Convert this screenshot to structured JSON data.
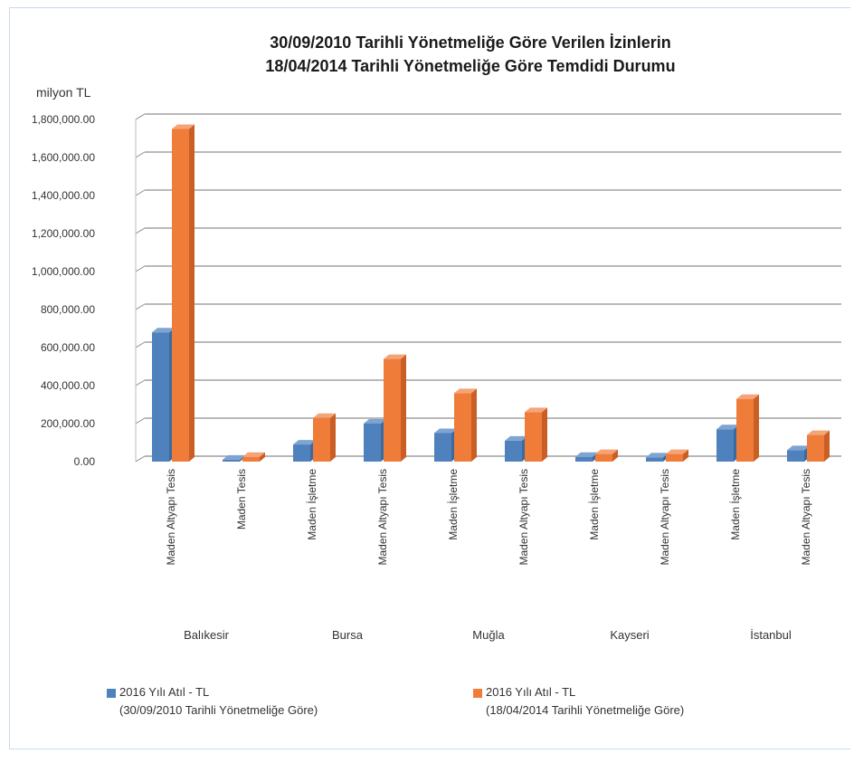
{
  "chart_data": {
    "type": "bar",
    "title": "30/09/2010 Tarihli Yönetmeliğe Göre Verilen İzinlerin 18/04/2014 Tarihli Yönetmeliğe Göre Temdidi Durumu",
    "title_lines": [
      "30/09/2010 Tarihli Yönetmeliğe Göre Verilen İzinlerin",
      "18/04/2014 Tarihli Yönetmeliğe Göre Temdidi Durumu"
    ],
    "ylabel": "milyon TL",
    "ylim": [
      0,
      1800000
    ],
    "yticks": [
      "0.00",
      "200,000.00",
      "400,000.00",
      "600,000.00",
      "800,000.00",
      "1,000,000.00",
      "1,200,000.00",
      "1,400,000.00",
      "1,600,000.00",
      "1,800,000.00"
    ],
    "grid": true,
    "legend_position": "bottom",
    "categories": [
      "Maden Altyapı Tesis",
      "Maden Tesis",
      "Maden İşletme",
      "Maden Altyapı Tesis",
      "Maden İşletme",
      "Maden Altyapı Tesis",
      "Maden İşletme",
      "Maden Altyapı Tesis",
      "Maden İşletme",
      "Maden Altyapı Tesis"
    ],
    "groups": [
      {
        "label": "Balıkesir",
        "count": 2
      },
      {
        "label": "Bursa",
        "count": 2
      },
      {
        "label": "Muğla",
        "count": 2
      },
      {
        "label": "Kayseri",
        "count": 2
      },
      {
        "label": "İstanbul",
        "count": 2
      }
    ],
    "series": [
      {
        "name": "2016 Yılı Atıl - TL (30/09/2010 Tarihli Yönetmeliğe Göre)",
        "name_lines": [
          "2016 Yılı Atıl - TL",
          "(30/09/2010 Tarihli Yönetmeliğe Göre)"
        ],
        "color": "#4f81bd",
        "values": [
          680000,
          10000,
          90000,
          200000,
          150000,
          110000,
          25000,
          22000,
          170000,
          60000
        ]
      },
      {
        "name": "2016 Yılı Atıl - TL (18/04/2014 Tarihli Yönetmeliğe Göre)",
        "name_lines": [
          "2016 Yılı Atıl - TL",
          "(18/04/2014 Tarihli Yönetmeliğe Göre)"
        ],
        "color": "#f07c3a",
        "values": [
          1750000,
          25000,
          230000,
          540000,
          360000,
          260000,
          40000,
          40000,
          330000,
          140000
        ]
      }
    ]
  }
}
